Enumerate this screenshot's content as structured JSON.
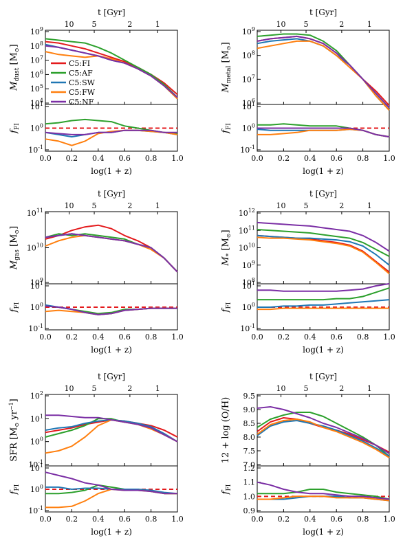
{
  "figure": {
    "top_axis_label": "t [Gyr]",
    "top_ticks": [
      "10",
      "5",
      "2",
      "1"
    ],
    "x_label": "log(1 + z)",
    "x_ticks": [
      "0.0",
      "0.2",
      "0.4",
      "0.6",
      "0.8",
      "1.0"
    ],
    "ratio_label": "f_FI",
    "legend": [
      {
        "name": "C5:FI",
        "color": "#e41a1c"
      },
      {
        "name": "C5:AF",
        "color": "#2ca02c"
      },
      {
        "name": "C5:SW",
        "color": "#1f77b4"
      },
      {
        "name": "C5:FW",
        "color": "#ff7f0e"
      },
      {
        "name": "C5:NF",
        "color": "#7b2fa5"
      }
    ]
  },
  "chart_data": [
    {
      "type": "line",
      "id": "dust",
      "ylabel": "M_dust [M_sun]",
      "y_scale": "log",
      "ylim_exp": [
        4,
        9
      ],
      "ratio_ylim_exp": [
        -1,
        1
      ],
      "x": [
        0.0,
        0.1,
        0.2,
        0.3,
        0.4,
        0.5,
        0.6,
        0.7,
        0.8,
        0.9,
        1.0
      ],
      "series": [
        {
          "name": "C5:FI",
          "log_values": [
            8.3,
            8.2,
            8.0,
            7.8,
            7.5,
            7.2,
            6.9,
            6.5,
            6.0,
            5.4,
            4.6
          ],
          "ratio_log": [
            0,
            0,
            0,
            0,
            0,
            0,
            0,
            0,
            0,
            0,
            0
          ]
        },
        {
          "name": "C5:AF",
          "log_values": [
            8.5,
            8.4,
            8.3,
            8.2,
            7.9,
            7.5,
            7.0,
            6.5,
            6.0,
            5.3,
            4.4
          ],
          "ratio_log": [
            0.2,
            0.25,
            0.35,
            0.4,
            0.35,
            0.3,
            0.1,
            0.0,
            -0.1,
            -0.2,
            -0.25
          ]
        },
        {
          "name": "C5:SW",
          "log_values": [
            8.1,
            7.9,
            7.7,
            7.5,
            7.3,
            7.0,
            6.8,
            6.4,
            5.9,
            5.2,
            4.3
          ],
          "ratio_log": [
            -0.2,
            -0.3,
            -0.4,
            -0.3,
            -0.2,
            -0.2,
            -0.1,
            -0.1,
            -0.15,
            -0.2,
            -0.3
          ]
        },
        {
          "name": "C5:FW",
          "log_values": [
            7.6,
            7.4,
            7.3,
            7.2,
            7.3,
            7.1,
            6.8,
            6.4,
            5.9,
            5.2,
            4.3
          ],
          "ratio_log": [
            -0.5,
            -0.6,
            -0.8,
            -0.6,
            -0.25,
            -0.15,
            -0.1,
            -0.1,
            -0.15,
            -0.2,
            -0.3
          ]
        },
        {
          "name": "C5:NF",
          "log_values": [
            8.0,
            7.9,
            7.7,
            7.5,
            7.3,
            7.0,
            6.8,
            6.4,
            5.9,
            5.2,
            4.4
          ],
          "ratio_log": [
            -0.2,
            -0.25,
            -0.3,
            -0.3,
            -0.2,
            -0.2,
            -0.1,
            -0.1,
            -0.1,
            -0.2,
            -0.2
          ]
        }
      ]
    },
    {
      "type": "line",
      "id": "metal",
      "ylabel": "M_metal [M_sun]",
      "y_scale": "log",
      "ylim_exp": [
        6,
        9
      ],
      "ratio_ylim_exp": [
        -1,
        1
      ],
      "x": [
        0.0,
        0.1,
        0.2,
        0.3,
        0.4,
        0.5,
        0.6,
        0.7,
        0.8,
        0.9,
        1.0
      ],
      "series": [
        {
          "name": "C5:FI",
          "log_values": [
            8.6,
            8.7,
            8.75,
            8.8,
            8.7,
            8.5,
            8.1,
            7.6,
            7.0,
            6.5,
            5.9
          ],
          "ratio_log": [
            0,
            0,
            0,
            0,
            0,
            0,
            0,
            0,
            0,
            0,
            0
          ]
        },
        {
          "name": "C5:AF",
          "log_values": [
            8.8,
            8.85,
            8.9,
            8.9,
            8.85,
            8.6,
            8.2,
            7.6,
            7.0,
            6.4,
            5.8
          ],
          "ratio_log": [
            0.15,
            0.15,
            0.2,
            0.15,
            0.1,
            0.1,
            0.1,
            0.0,
            -0.1,
            -0.3,
            -0.4
          ]
        },
        {
          "name": "C5:SW",
          "log_values": [
            8.5,
            8.6,
            8.65,
            8.7,
            8.6,
            8.4,
            8.0,
            7.6,
            7.0,
            6.3,
            5.7
          ],
          "ratio_log": [
            -0.05,
            -0.1,
            -0.1,
            -0.1,
            -0.1,
            -0.1,
            -0.1,
            -0.05,
            -0.1,
            -0.3,
            -0.4
          ]
        },
        {
          "name": "C5:FW",
          "log_values": [
            8.3,
            8.4,
            8.5,
            8.6,
            8.6,
            8.4,
            8.0,
            7.5,
            7.0,
            6.3,
            5.7
          ],
          "ratio_log": [
            -0.3,
            -0.3,
            -0.25,
            -0.2,
            -0.1,
            -0.1,
            -0.1,
            -0.05,
            -0.1,
            -0.3,
            -0.4
          ]
        },
        {
          "name": "C5:NF",
          "log_values": [
            8.6,
            8.7,
            8.75,
            8.8,
            8.7,
            8.5,
            8.1,
            7.6,
            7.0,
            6.4,
            5.8
          ],
          "ratio_log": [
            0.0,
            0.0,
            0.0,
            0.0,
            0.0,
            0.0,
            0.0,
            0.0,
            -0.1,
            -0.3,
            -0.4
          ]
        }
      ]
    },
    {
      "type": "line",
      "id": "gas",
      "ylabel": "M_gas [M_sun]",
      "y_scale": "log",
      "ylim_exp": [
        9,
        11
      ],
      "ratio_ylim_exp": [
        -1,
        1
      ],
      "x": [
        0.0,
        0.1,
        0.2,
        0.3,
        0.4,
        0.5,
        0.6,
        0.7,
        0.8,
        0.9,
        1.0
      ],
      "series": [
        {
          "name": "C5:FI",
          "log_values": [
            10.25,
            10.35,
            10.5,
            10.6,
            10.65,
            10.55,
            10.35,
            10.2,
            10.0,
            9.7,
            9.3
          ],
          "ratio_log": [
            0,
            0,
            0,
            0,
            0,
            0,
            0,
            0,
            0,
            0,
            0
          ]
        },
        {
          "name": "C5:AF",
          "log_values": [
            10.3,
            10.4,
            10.35,
            10.4,
            10.35,
            10.3,
            10.25,
            10.1,
            10.0,
            9.7,
            9.3
          ],
          "ratio_log": [
            0.05,
            0.0,
            -0.1,
            -0.2,
            -0.3,
            -0.25,
            -0.1,
            -0.1,
            -0.05,
            -0.05,
            -0.05
          ]
        },
        {
          "name": "C5:SW",
          "log_values": [
            10.3,
            10.35,
            10.4,
            10.35,
            10.3,
            10.25,
            10.2,
            10.1,
            10.0,
            9.7,
            9.3
          ],
          "ratio_log": [
            0.1,
            0.0,
            -0.1,
            -0.25,
            -0.35,
            -0.3,
            -0.15,
            -0.1,
            -0.05,
            -0.05,
            -0.05
          ]
        },
        {
          "name": "C5:FW",
          "log_values": [
            10.05,
            10.2,
            10.3,
            10.35,
            10.3,
            10.25,
            10.2,
            10.1,
            9.95,
            9.7,
            9.3
          ],
          "ratio_log": [
            -0.2,
            -0.15,
            -0.2,
            -0.25,
            -0.35,
            -0.3,
            -0.15,
            -0.1,
            -0.05,
            -0.05,
            -0.05
          ]
        },
        {
          "name": "C5:NF",
          "log_values": [
            10.3,
            10.35,
            10.4,
            10.35,
            10.3,
            10.25,
            10.2,
            10.1,
            10.0,
            9.7,
            9.3
          ],
          "ratio_log": [
            0.05,
            0.0,
            -0.1,
            -0.25,
            -0.35,
            -0.3,
            -0.15,
            -0.1,
            -0.05,
            -0.05,
            -0.05
          ]
        }
      ]
    },
    {
      "type": "line",
      "id": "stars",
      "ylabel": "M_* [M_sun]",
      "y_scale": "log",
      "ylim_exp": [
        8,
        12
      ],
      "ratio_ylim_exp": [
        -1,
        1
      ],
      "x": [
        0.0,
        0.1,
        0.2,
        0.3,
        0.4,
        0.5,
        0.6,
        0.7,
        0.8,
        0.9,
        1.0
      ],
      "series": [
        {
          "name": "C5:FI",
          "log_values": [
            10.7,
            10.65,
            10.6,
            10.55,
            10.5,
            10.4,
            10.3,
            10.15,
            9.8,
            9.2,
            8.6
          ],
          "ratio_log": [
            0,
            0,
            0,
            0,
            0,
            0,
            0,
            0,
            0,
            0,
            0
          ]
        },
        {
          "name": "C5:AF",
          "log_values": [
            11.05,
            11.0,
            10.95,
            10.9,
            10.85,
            10.75,
            10.65,
            10.55,
            10.3,
            9.9,
            9.5
          ],
          "ratio_log": [
            0.35,
            0.35,
            0.35,
            0.35,
            0.35,
            0.35,
            0.4,
            0.4,
            0.5,
            0.7,
            0.9
          ]
        },
        {
          "name": "C5:SW",
          "log_values": [
            10.7,
            10.65,
            10.6,
            10.55,
            10.55,
            10.5,
            10.45,
            10.35,
            10.1,
            9.6,
            9.0
          ],
          "ratio_log": [
            0.0,
            0.0,
            0.05,
            0.05,
            0.1,
            0.1,
            0.15,
            0.2,
            0.25,
            0.3,
            0.35
          ]
        },
        {
          "name": "C5:FW",
          "log_values": [
            10.6,
            10.55,
            10.55,
            10.5,
            10.45,
            10.35,
            10.25,
            10.1,
            9.75,
            9.15,
            8.5
          ],
          "ratio_log": [
            -0.1,
            -0.1,
            -0.05,
            -0.05,
            -0.05,
            -0.05,
            -0.05,
            -0.05,
            -0.05,
            -0.05,
            -0.05
          ]
        },
        {
          "name": "C5:NF",
          "log_values": [
            11.45,
            11.4,
            11.35,
            11.3,
            11.25,
            11.15,
            11.05,
            10.95,
            10.7,
            10.3,
            9.8
          ],
          "ratio_log": [
            0.8,
            0.8,
            0.75,
            0.75,
            0.75,
            0.75,
            0.75,
            0.8,
            0.85,
            1.0,
            1.1
          ]
        }
      ]
    },
    {
      "type": "line",
      "id": "sfr",
      "ylabel": "SFR [M_sun yr^-1]",
      "y_scale": "log",
      "ylim_exp": [
        -1,
        2
      ],
      "ratio_ylim_exp": [
        -1,
        1
      ],
      "x": [
        0.0,
        0.1,
        0.2,
        0.3,
        0.4,
        0.5,
        0.6,
        0.7,
        0.8,
        0.9,
        1.0
      ],
      "series": [
        {
          "name": "C5:FI",
          "log_values": [
            0.4,
            0.5,
            0.6,
            0.75,
            0.85,
            0.95,
            0.9,
            0.8,
            0.7,
            0.5,
            0.2
          ],
          "ratio_log": [
            0,
            0,
            0,
            0,
            0,
            0,
            0,
            0,
            0,
            0,
            0
          ]
        },
        {
          "name": "C5:AF",
          "log_values": [
            0.2,
            0.35,
            0.5,
            0.7,
            1.0,
            1.0,
            0.85,
            0.8,
            0.6,
            0.3,
            0.0
          ],
          "ratio_log": [
            -0.2,
            -0.2,
            -0.15,
            -0.05,
            0.2,
            0.1,
            0.0,
            0.0,
            -0.1,
            -0.2,
            -0.2
          ]
        },
        {
          "name": "C5:SW",
          "log_values": [
            0.5,
            0.6,
            0.65,
            0.8,
            0.9,
            0.95,
            0.9,
            0.8,
            0.65,
            0.35,
            0.0
          ],
          "ratio_log": [
            0.1,
            0.1,
            0.0,
            0.05,
            0.05,
            0.0,
            0.0,
            0.0,
            -0.05,
            -0.15,
            -0.2
          ]
        },
        {
          "name": "C5:FW",
          "log_values": [
            -0.5,
            -0.4,
            -0.2,
            0.2,
            0.7,
            0.95,
            0.85,
            0.75,
            0.55,
            0.3,
            0.0
          ],
          "ratio_log": [
            -0.85,
            -0.85,
            -0.8,
            -0.55,
            -0.2,
            0.0,
            -0.05,
            -0.05,
            -0.1,
            -0.2,
            -0.2
          ]
        },
        {
          "name": "C5:NF",
          "log_values": [
            1.15,
            1.15,
            1.1,
            1.05,
            1.05,
            0.95,
            0.85,
            0.75,
            0.6,
            0.3,
            0.0
          ],
          "ratio_log": [
            0.8,
            0.65,
            0.5,
            0.3,
            0.2,
            0.0,
            -0.05,
            -0.05,
            -0.1,
            -0.2,
            -0.2
          ]
        }
      ]
    },
    {
      "type": "line",
      "id": "oh",
      "ylabel": "12 + log(O/H)",
      "y_scale": "linear",
      "ylim": [
        7.0,
        9.5
      ],
      "ratio_ylim": [
        0.9,
        1.2
      ],
      "x": [
        0.0,
        0.1,
        0.2,
        0.3,
        0.4,
        0.5,
        0.6,
        0.7,
        0.8,
        0.9,
        1.0
      ],
      "series": [
        {
          "name": "C5:FI",
          "values": [
            8.2,
            8.55,
            8.7,
            8.65,
            8.5,
            8.35,
            8.25,
            8.1,
            7.9,
            7.7,
            7.45
          ],
          "ratio": [
            1.0,
            1.0,
            1.0,
            1.0,
            1.0,
            1.0,
            1.0,
            1.0,
            1.0,
            1.0,
            1.0
          ]
        },
        {
          "name": "C5:AF",
          "values": [
            8.35,
            8.65,
            8.8,
            8.9,
            8.9,
            8.75,
            8.5,
            8.25,
            8.0,
            7.7,
            7.3
          ],
          "ratio": [
            1.02,
            1.02,
            1.02,
            1.03,
            1.05,
            1.05,
            1.03,
            1.02,
            1.01,
            1.0,
            0.98
          ]
        },
        {
          "name": "C5:SW",
          "values": [
            8.05,
            8.4,
            8.55,
            8.6,
            8.5,
            8.4,
            8.25,
            8.05,
            7.85,
            7.6,
            7.3
          ],
          "ratio": [
            0.98,
            0.98,
            0.98,
            0.99,
            1.0,
            1.0,
            1.0,
            0.99,
            0.99,
            0.98,
            0.97
          ]
        },
        {
          "name": "C5:FW",
          "values": [
            8.1,
            8.45,
            8.6,
            8.65,
            8.55,
            8.35,
            8.2,
            8.0,
            7.8,
            7.55,
            7.25
          ],
          "ratio": [
            0.98,
            0.98,
            0.99,
            1.0,
            1.0,
            1.0,
            0.99,
            0.99,
            0.99,
            0.98,
            0.97
          ]
        },
        {
          "name": "C5:NF",
          "values": [
            9.05,
            9.1,
            9.0,
            8.85,
            8.7,
            8.5,
            8.35,
            8.15,
            7.95,
            7.7,
            7.4
          ],
          "ratio": [
            1.1,
            1.08,
            1.05,
            1.03,
            1.02,
            1.02,
            1.01,
            1.0,
            1.0,
            0.99,
            0.98
          ]
        }
      ]
    }
  ]
}
